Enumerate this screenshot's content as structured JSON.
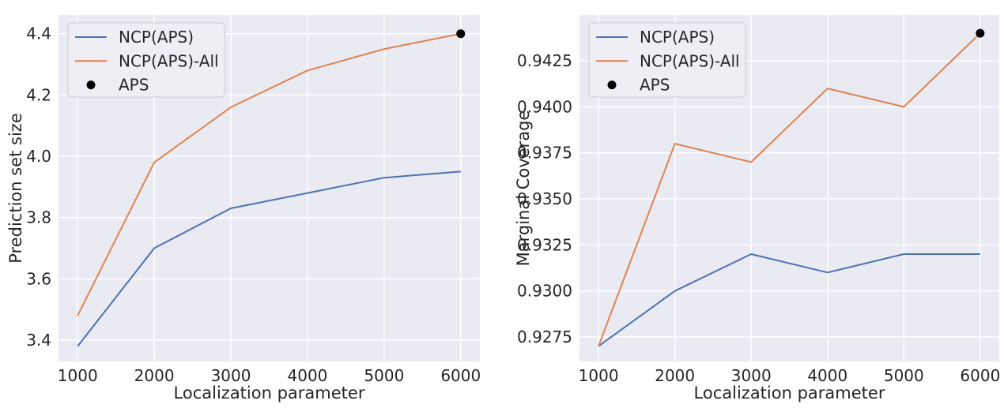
{
  "figure": {
    "background": "#ffffff",
    "plot_background": "#eaeaf2",
    "grid_color": "#ffffff",
    "text_color": "#262626",
    "legend_background": "#efeef5",
    "legend_border": "#cccccc",
    "colors": {
      "ncp_aps": "#4c72b0",
      "ncp_aps_all": "#dd8452",
      "aps_dot": "#000000"
    }
  },
  "chart_data": [
    {
      "type": "line",
      "title": "",
      "xlabel": "Localization parameter",
      "ylabel": "Prediction set size",
      "grid": true,
      "legend_position": "upper-left",
      "x": [
        1000,
        2000,
        3000,
        4000,
        5000,
        6000
      ],
      "xlim": [
        750,
        6250
      ],
      "ylim": [
        3.3305,
        4.461
      ],
      "xticks": [
        1000,
        2000,
        3000,
        4000,
        5000,
        6000
      ],
      "xtick_labels": [
        "1000",
        "2000",
        "3000",
        "4000",
        "5000",
        "6000"
      ],
      "yticks": [
        3.4,
        3.6,
        3.8,
        4.0,
        4.2,
        4.4
      ],
      "ytick_labels": [
        "3.4",
        "3.6",
        "3.8",
        "4.0",
        "4.2",
        "4.4"
      ],
      "series": [
        {
          "name": "NCP(APS)",
          "color": "#4c72b0",
          "values": [
            3.38,
            3.7,
            3.83,
            3.88,
            3.93,
            3.95
          ]
        },
        {
          "name": "NCP(APS)-All",
          "color": "#dd8452",
          "values": [
            3.48,
            3.98,
            4.16,
            4.28,
            4.35,
            4.4
          ]
        }
      ],
      "points": [
        {
          "name": "APS",
          "color": "#000000",
          "x": 6000,
          "y": 4.4
        }
      ]
    },
    {
      "type": "line",
      "title": "",
      "xlabel": "Localization parameter",
      "ylabel": "Marginal Coverage",
      "grid": true,
      "legend_position": "upper-left",
      "x": [
        1000,
        2000,
        3000,
        4000,
        5000,
        6000
      ],
      "xlim": [
        750,
        6250
      ],
      "ylim": [
        0.92617,
        0.94499
      ],
      "xticks": [
        1000,
        2000,
        3000,
        4000,
        5000,
        6000
      ],
      "xtick_labels": [
        "1000",
        "2000",
        "3000",
        "4000",
        "5000",
        "6000"
      ],
      "yticks": [
        0.9275,
        0.93,
        0.9325,
        0.935,
        0.9375,
        0.94,
        0.9425
      ],
      "ytick_labels": [
        "0.9275",
        "0.9300",
        "0.9325",
        "0.9350",
        "0.9375",
        "0.9400",
        "0.9425"
      ],
      "series": [
        {
          "name": "NCP(APS)",
          "color": "#4c72b0",
          "values": [
            0.927,
            0.93,
            0.932,
            0.931,
            0.932,
            0.932
          ]
        },
        {
          "name": "NCP(APS)-All",
          "color": "#dd8452",
          "values": [
            0.927,
            0.938,
            0.937,
            0.941,
            0.94,
            0.944
          ]
        }
      ],
      "points": [
        {
          "name": "APS",
          "color": "#000000",
          "x": 6000,
          "y": 0.944
        }
      ]
    }
  ]
}
